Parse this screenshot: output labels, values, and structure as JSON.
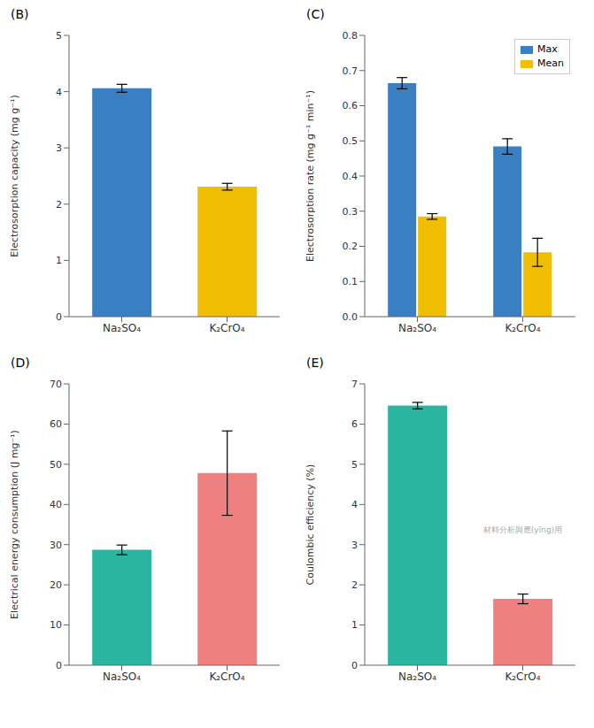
{
  "chart_data": [
    {
      "type": "bar",
      "title": "(B)",
      "categories": [
        "Na₂SO₄",
        "K₂CrO₄"
      ],
      "values": [
        4.06,
        2.31
      ],
      "errors": [
        0.07,
        0.06
      ],
      "colors": [
        "#3a7fc1",
        "#f0be00"
      ],
      "ylabel": "Electrosorption capacity (mg g⁻¹)",
      "ylim": [
        0,
        5
      ],
      "yticks": [
        0,
        1,
        2,
        3,
        4,
        5
      ]
    },
    {
      "type": "bar",
      "title": "(C)",
      "categories": [
        "Na₂SO₄",
        "K₂CrO₄"
      ],
      "series": [
        {
          "name": "Max",
          "color": "#3a7fc1",
          "values": [
            0.664,
            0.484
          ],
          "errors": [
            0.016,
            0.022
          ]
        },
        {
          "name": "Mean",
          "color": "#f0be00",
          "values": [
            0.285,
            0.183
          ],
          "errors": [
            0.008,
            0.04
          ]
        }
      ],
      "ylabel": "Electrosorption rate (mg g⁻¹ min⁻¹)",
      "ylim": [
        0,
        0.8
      ],
      "yticks": [
        {
          "value": 0.0,
          "label": "0.0"
        },
        0.1,
        0.2,
        0.3,
        0.4,
        0.5,
        0.6,
        0.7,
        0.8
      ],
      "legend": "upper right"
    },
    {
      "type": "bar",
      "title": "(D)",
      "categories": [
        "Na₂SO₄",
        "K₂CrO₄"
      ],
      "values": [
        28.7,
        47.8
      ],
      "errors": [
        1.2,
        10.5
      ],
      "colors": [
        "#2ab5a0",
        "#f08080"
      ],
      "ylabel": "Electrical energy consumption (J mg⁻¹)",
      "ylim": [
        0,
        70
      ],
      "yticks": [
        0,
        10,
        20,
        30,
        40,
        50,
        60,
        70
      ]
    },
    {
      "type": "bar",
      "title": "(E)",
      "categories": [
        "Na₂SO₄",
        "K₂CrO₄"
      ],
      "values": [
        6.46,
        1.65
      ],
      "errors": [
        0.08,
        0.12
      ],
      "colors": [
        "#2ab5a0",
        "#f08080"
      ],
      "ylabel": "Coulombic efficiency (%)",
      "ylim": [
        0,
        7
      ],
      "yticks": [
        0,
        1,
        2,
        3,
        4,
        5,
        6,
        7
      ],
      "annotations": [
        "材料分析與應(yīng)用"
      ]
    }
  ]
}
